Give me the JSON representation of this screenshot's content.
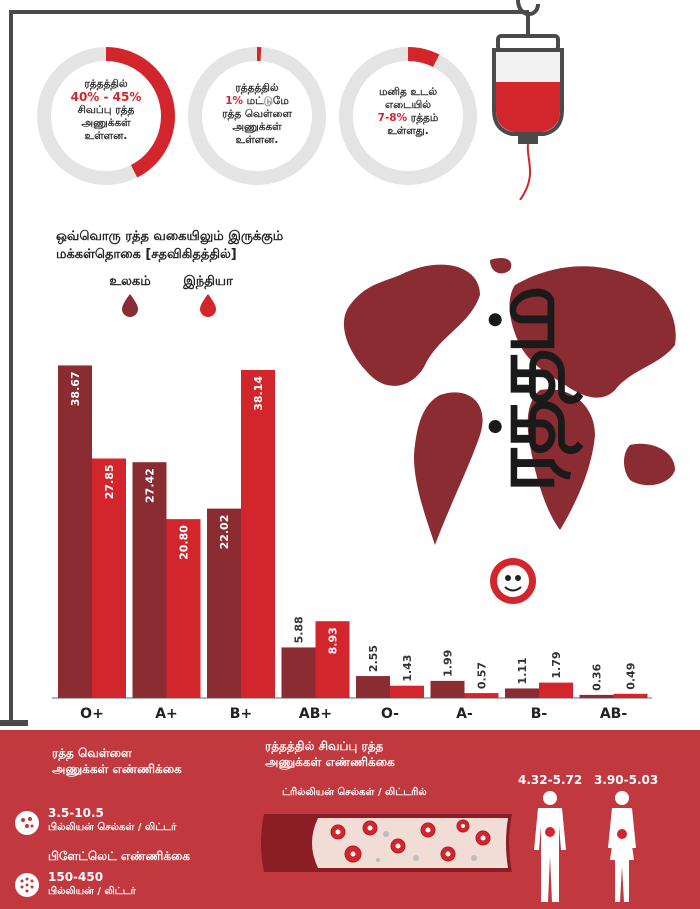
{
  "brand": {
    "vertical_title": "ரத்தம்"
  },
  "stats": [
    {
      "line1": "ரத்தத்தில்",
      "value": "40% - 45%",
      "line3": "சிவப்பு ரத்த",
      "line4": "அணுக்கள்",
      "line5": "உள்ளன.",
      "fill_fraction": 0.425
    },
    {
      "line1": "ரத்தத்தில்",
      "value": "1%",
      "value_suffix": " மட்டுமே",
      "line3": "ரத்த வெள்ளை",
      "line4": "அணுக்கள்",
      "line5": "உள்ளன.",
      "fill_fraction": 0.01
    },
    {
      "line1": "மனித உடல்",
      "line2": "எடையில்",
      "value": "7-8%",
      "value_suffix": " ரத்தம்",
      "line5": "உள்ளது.",
      "fill_fraction": 0.075
    }
  ],
  "chart_title": {
    "line1": "ஒவ்வொரு ரத்த வகையிலும் இருக்கும்",
    "line2": "மக்கள்தொகை [சதவிகிதத்தில்]"
  },
  "colors": {
    "world": "#8b2b32",
    "india": "#d3262c",
    "band": "#c1383f",
    "ring": "#e4e4e4"
  },
  "chart_data": {
    "type": "bar",
    "categories": [
      "O+",
      "A+",
      "B+",
      "AB+",
      "O-",
      "A-",
      "B-",
      "AB-"
    ],
    "series": [
      {
        "name": "உலகம்",
        "values": [
          38.67,
          27.42,
          22.02,
          5.88,
          2.55,
          1.99,
          1.11,
          0.36
        ]
      },
      {
        "name": "இந்தியா",
        "values": [
          27.85,
          20.8,
          38.14,
          8.93,
          1.43,
          0.57,
          1.79,
          0.49
        ]
      }
    ],
    "value_labels": {
      "world": [
        "38.67",
        "27.42",
        "22.02",
        "5.88",
        "2.55",
        "1.99",
        "1.11",
        "0.36"
      ],
      "india": [
        "27.85",
        "20.80",
        "38.14",
        "8.93",
        "1.43",
        "0.57",
        "1.79",
        "0.49"
      ]
    },
    "ylim": [
      0,
      40
    ],
    "grid": false,
    "legend_position": "top-left"
  },
  "bottom": {
    "wbc_title_1": "ரத்த வெள்ளை",
    "wbc_title_2": "அணுக்கள் எண்ணிக்கை",
    "wbc_value": "3.5-10.5",
    "wbc_unit": "பில்லியன் செல்கள் / லிட்டர்",
    "platelet_title": "பிளேட்லெட் எண்ணிக்கை",
    "platelet_value": "150-450",
    "platelet_unit": "பில்லியன் / லிட்டர்",
    "rbc_title_1": "ரத்தத்தில் சிவப்பு ரத்த",
    "rbc_title_2": "அணுக்கள் எண்ணிக்கை",
    "rbc_unit": "ட்ரில்லியன் செல்கள் / லிட்டரில்",
    "male_value": "4.32-5.72",
    "female_value": "3.90-5.03"
  }
}
